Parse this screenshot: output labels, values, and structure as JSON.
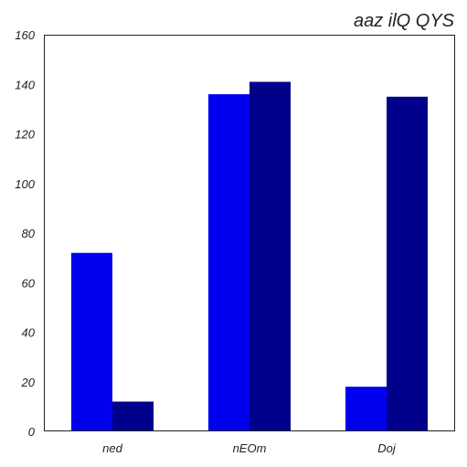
{
  "chart_data": {
    "type": "bar",
    "title": "aaz ilQ QYS",
    "xlabel": "",
    "ylabel": "",
    "categories": [
      "ned",
      "nEOm",
      "Doj"
    ],
    "series": [
      {
        "values": [
          72,
          136,
          18
        ],
        "color": "#0000ee"
      },
      {
        "values": [
          12,
          141,
          135
        ],
        "color": "#00008b"
      }
    ],
    "ylim": [
      0,
      160
    ],
    "yticks": [
      0,
      20,
      40,
      60,
      80,
      100,
      120,
      140,
      160
    ],
    "grid": false,
    "legend": "none"
  }
}
